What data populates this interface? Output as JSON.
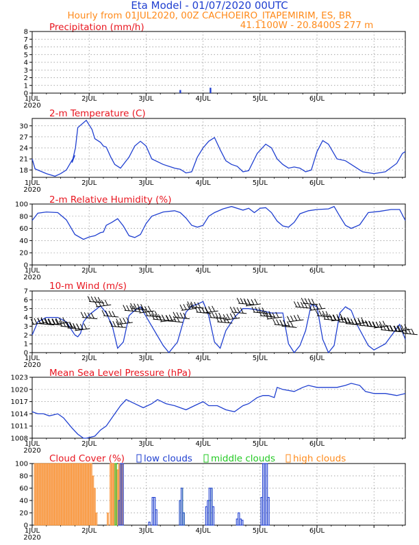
{
  "header": {
    "title": "Eta Model - 01/07/2020 00UTC",
    "line2": "Hourly from 01JUL2020, 00Z  CACHOEIRO_ITAPEMIRIM, ES, BR",
    "line3": "41.1100W - 20.8400S    277   m"
  },
  "x_axis": {
    "labels": [
      "1JUL",
      "2JUL",
      "3JUL",
      "4JUL",
      "5JUL",
      "6JUL"
    ],
    "year": "2020"
  },
  "colors": {
    "line": "#1f3fd0",
    "barb": "#000000",
    "low_clouds": "#1f3fd0",
    "middle_clouds": "#22c922",
    "high_clouds_fill": "#f5b27a",
    "high_clouds_edge": "#ff8a1a",
    "title": "#e8141e"
  },
  "chart_data": [
    {
      "id": "precip",
      "type": "bar",
      "title": "Precipitation (mm/h)",
      "ylim": [
        0,
        8
      ],
      "yticks": [
        "0",
        "1",
        "2",
        "3",
        "4",
        "5",
        "6",
        "7",
        "8"
      ],
      "x_unit": "days since 1JUL2020 00Z",
      "x": [
        2.6,
        3.13
      ],
      "values": [
        0.4,
        0.7
      ],
      "grid": true
    },
    {
      "id": "temp",
      "type": "line",
      "title": "2-m Temperature (C)",
      "ylim": [
        16,
        32
      ],
      "yticks": [
        "18",
        "21",
        "24",
        "27",
        "30"
      ],
      "ytick_values": [
        18,
        21,
        24,
        27,
        30
      ],
      "x": [
        0,
        0.05,
        0.25,
        0.4,
        0.5,
        0.6,
        0.75,
        0.7,
        0.76,
        0.8,
        0.95,
        1.05,
        1.1,
        1.2,
        1.25,
        1.3,
        1.38,
        1.45,
        1.55,
        1.7,
        1.8,
        1.9,
        2.0,
        2.1,
        2.3,
        2.5,
        2.6,
        2.7,
        2.8,
        2.9,
        3.0,
        3.1,
        3.2,
        3.3,
        3.4,
        3.5,
        3.6,
        3.7,
        3.8,
        3.95,
        4.1,
        4.2,
        4.3,
        4.4,
        4.5,
        4.6,
        4.7,
        4.8,
        4.9,
        5.0,
        5.1,
        5.2,
        5.35,
        5.5,
        5.6,
        5.7,
        5.8,
        6.0,
        6.2,
        6.4,
        6.5,
        6.55
      ],
      "values": [
        21,
        18.3,
        17,
        16.3,
        17,
        18,
        22,
        20,
        24,
        29.5,
        31.5,
        29,
        26.5,
        25.5,
        24.5,
        24.2,
        21.5,
        19.5,
        18.5,
        21.5,
        24.5,
        25.8,
        24.5,
        21,
        19.5,
        18.5,
        18.2,
        17.2,
        17.5,
        21.5,
        24,
        25.8,
        26.8,
        23.5,
        20.5,
        19.5,
        19,
        17.5,
        17.8,
        22.5,
        25,
        24,
        21,
        19.5,
        18.5,
        18.8,
        18.5,
        17.5,
        18,
        23,
        26,
        25,
        21,
        20.5,
        19.5,
        18.5,
        17.5,
        17,
        17.5,
        19.8,
        22.5,
        23
      ],
      "grid": true
    },
    {
      "id": "rh",
      "type": "line",
      "title": "2-m Relative Humidity (%)",
      "ylim": [
        0,
        100
      ],
      "yticks": [
        "0",
        "20",
        "40",
        "60",
        "80",
        "100"
      ],
      "ytick_values": [
        0,
        20,
        40,
        60,
        80,
        100
      ],
      "x": [
        0,
        0.1,
        0.25,
        0.45,
        0.6,
        0.75,
        0.9,
        1.0,
        1.1,
        1.2,
        1.25,
        1.3,
        1.4,
        1.5,
        1.6,
        1.7,
        1.8,
        1.9,
        2.0,
        2.1,
        2.3,
        2.5,
        2.6,
        2.7,
        2.8,
        2.9,
        3.0,
        3.1,
        3.2,
        3.35,
        3.5,
        3.7,
        3.8,
        3.9,
        4.0,
        4.1,
        4.2,
        4.3,
        4.4,
        4.5,
        4.6,
        4.7,
        4.85,
        5.0,
        5.2,
        5.3,
        5.4,
        5.5,
        5.6,
        5.75,
        5.9,
        6.1,
        6.3,
        6.45,
        6.55
      ],
      "values": [
        73,
        85,
        87,
        86,
        74,
        50,
        42,
        46,
        48,
        53,
        54,
        65,
        70,
        76,
        64,
        48,
        45,
        50,
        68,
        80,
        87,
        89,
        86,
        77,
        65,
        62,
        65,
        80,
        86,
        92,
        96,
        90,
        93,
        86,
        93,
        94,
        86,
        72,
        64,
        62,
        70,
        84,
        89,
        91,
        92,
        96,
        80,
        65,
        60,
        66,
        86,
        88,
        91,
        91,
        73
      ],
      "grid": true
    },
    {
      "id": "wind",
      "type": "line",
      "title": "10-m Wind (m/s)",
      "ylim": [
        0,
        7
      ],
      "yticks": [
        "0",
        "1",
        "2",
        "3",
        "4",
        "5",
        "6",
        "7"
      ],
      "ytick_values": [
        0,
        1,
        2,
        3,
        4,
        5,
        6,
        7
      ],
      "x": [
        0,
        0.1,
        0.25,
        0.45,
        0.6,
        0.7,
        0.75,
        0.8,
        0.85,
        0.9,
        1.0,
        1.1,
        1.2,
        1.3,
        1.35,
        1.4,
        1.5,
        1.6,
        1.7,
        1.8,
        1.9,
        2.1,
        2.3,
        2.4,
        2.55,
        2.7,
        2.8,
        2.9,
        3.0,
        3.1,
        3.2,
        3.3,
        3.4,
        3.55,
        3.7,
        3.8,
        4.0,
        4.2,
        4.4,
        4.5,
        4.6,
        4.7,
        4.8,
        4.9,
        5.0,
        5.1,
        5.2,
        5.3,
        5.4,
        5.5,
        5.6,
        5.7,
        5.9,
        6.0,
        6.2,
        6.45,
        6.55
      ],
      "values": [
        2,
        3.5,
        4,
        4,
        3.5,
        2.5,
        2,
        1.8,
        2.2,
        3.5,
        4.3,
        4.8,
        5.3,
        4.5,
        3.8,
        3.2,
        0.5,
        1.2,
        4.2,
        4.8,
        5.2,
        3,
        0.8,
        0,
        1.2,
        4.6,
        5.3,
        5.5,
        5.8,
        4.2,
        1.2,
        0.5,
        2.5,
        4,
        5,
        5,
        4.8,
        4.5,
        4.5,
        1,
        0,
        0.8,
        2.5,
        5.5,
        5.2,
        1.5,
        0,
        0.8,
        4.5,
        5.2,
        4.8,
        3.2,
        0.8,
        0.3,
        1,
        3.2,
        1.5
      ],
      "grid": true,
      "barbs": {
        "x": [
          0.0,
          0.12,
          0.25,
          0.38,
          0.5,
          0.62,
          0.75,
          0.88,
          1.0,
          1.12,
          1.25,
          1.38,
          1.5,
          1.62,
          1.75,
          1.88,
          2.0,
          2.12,
          2.25,
          2.38,
          2.5,
          2.62,
          2.75,
          2.88,
          3.0,
          3.12,
          3.25,
          3.38,
          3.5,
          3.62,
          3.75,
          3.88,
          4.0,
          4.12,
          4.25,
          4.38,
          4.5,
          4.62,
          4.75,
          4.88,
          5.0,
          5.12,
          5.25,
          5.38,
          5.5,
          5.62,
          5.75,
          5.88,
          6.0,
          6.12,
          6.25,
          6.38,
          6.5
        ],
        "y": [
          3.2,
          3.3,
          3.3,
          3.2,
          3.0,
          2.8,
          2.5,
          4.0,
          5.8,
          5.2,
          4.2,
          3.0,
          3.2,
          4.8,
          5.0,
          4.5,
          4.2,
          3.8,
          3.5,
          3.6,
          4.0,
          4.8,
          5.2,
          4.6,
          4.5,
          4.0,
          3.5,
          3.7,
          4.6,
          5.6,
          5.3,
          4.6,
          4.2,
          3.8,
          3.2,
          3.0,
          3.5,
          5.2,
          5.6,
          4.8,
          4.2,
          3.8,
          3.6,
          3.5,
          3.3,
          3.2,
          3.1,
          3.0,
          2.8,
          2.6,
          2.5,
          2.4,
          2.2
        ]
      }
    },
    {
      "id": "mslp",
      "type": "line",
      "title": "Mean Sea Level Pressure (hPa)",
      "ylim": [
        1008,
        1023
      ],
      "yticks": [
        "1008",
        "1011",
        "1014",
        "1017",
        "1020",
        "1023"
      ],
      "ytick_values": [
        1008,
        1011,
        1014,
        1017,
        1020,
        1023
      ],
      "x": [
        0,
        0.1,
        0.2,
        0.3,
        0.45,
        0.55,
        0.7,
        0.8,
        0.9,
        0.95,
        1.1,
        1.2,
        1.3,
        1.45,
        1.55,
        1.65,
        1.8,
        1.95,
        2.1,
        2.2,
        2.35,
        2.5,
        2.7,
        2.85,
        3.0,
        3.1,
        3.25,
        3.4,
        3.55,
        3.7,
        3.8,
        3.95,
        4.05,
        4.15,
        4.25,
        4.3,
        4.4,
        4.6,
        4.75,
        4.85,
        5.0,
        5.2,
        5.35,
        5.5,
        5.6,
        5.75,
        5.85,
        6.0,
        6.2,
        6.4,
        6.55
      ],
      "values": [
        1014.5,
        1014,
        1014,
        1013.5,
        1014,
        1013,
        1010.5,
        1009,
        1008,
        1008,
        1008.5,
        1010,
        1011,
        1014,
        1016,
        1017.5,
        1016.5,
        1015.5,
        1016.5,
        1017.5,
        1016.5,
        1016,
        1015,
        1016,
        1017,
        1016,
        1016,
        1015,
        1014.5,
        1016,
        1016.5,
        1018,
        1018.5,
        1018.5,
        1018,
        1020.5,
        1020,
        1019.5,
        1020.5,
        1021,
        1020.5,
        1020.5,
        1020.5,
        1021,
        1021.5,
        1021,
        1019.5,
        1019,
        1019,
        1018.5,
        1019
      ],
      "grid": true
    },
    {
      "id": "clouds",
      "type": "bar",
      "title": "Cloud Cover (%)",
      "legend": [
        "low clouds",
        "middle clouds",
        "high clouds"
      ],
      "legend_placement": "top",
      "ylim": [
        0,
        100
      ],
      "yticks": [
        "0",
        "20",
        "40",
        "60",
        "80",
        "100"
      ],
      "ytick_values": [
        0,
        20,
        40,
        60,
        80,
        100
      ],
      "bar_width_days": 0.031,
      "series": [
        {
          "name": "high clouds",
          "x": [
            0.05,
            0.08,
            0.11,
            0.14,
            0.17,
            0.2,
            0.23,
            0.26,
            0.29,
            0.32,
            0.35,
            0.38,
            0.41,
            0.44,
            0.47,
            0.5,
            0.53,
            0.56,
            0.59,
            0.62,
            0.65,
            0.68,
            0.71,
            0.74,
            0.77,
            0.8,
            0.83,
            0.86,
            0.89,
            0.92,
            0.95,
            0.98,
            1.01,
            1.04,
            1.07,
            1.1,
            1.13,
            1.33,
            1.38,
            1.41,
            1.44,
            1.47,
            1.5,
            1.53,
            1.56,
            1.59
          ],
          "values": [
            100,
            100,
            100,
            100,
            100,
            100,
            100,
            100,
            100,
            100,
            100,
            100,
            100,
            100,
            100,
            100,
            100,
            100,
            100,
            100,
            100,
            100,
            100,
            100,
            100,
            100,
            100,
            100,
            100,
            100,
            100,
            100,
            100,
            100,
            80,
            60,
            20,
            20,
            100,
            100,
            100,
            100,
            90,
            100,
            100,
            100
          ]
        },
        {
          "name": "middle clouds",
          "x": [
            1.47,
            2.6,
            2.63,
            2.66,
            3.12,
            3.15
          ],
          "values": [
            100,
            40,
            60,
            20,
            40,
            60
          ]
        },
        {
          "name": "low clouds",
          "x": [
            1.53,
            1.56,
            1.59,
            2.06,
            2.12,
            2.15,
            2.18,
            2.6,
            2.63,
            2.66,
            3.06,
            3.09,
            3.12,
            3.15,
            3.18,
            3.6,
            3.63,
            3.66,
            3.69,
            4.03,
            4.06,
            4.09,
            4.12,
            4.15
          ],
          "values": [
            40,
            100,
            100,
            5,
            45,
            45,
            25,
            40,
            60,
            20,
            30,
            40,
            60,
            60,
            30,
            10,
            20,
            10,
            8,
            45,
            100,
            100,
            100,
            45
          ]
        }
      ],
      "grid": true
    }
  ]
}
